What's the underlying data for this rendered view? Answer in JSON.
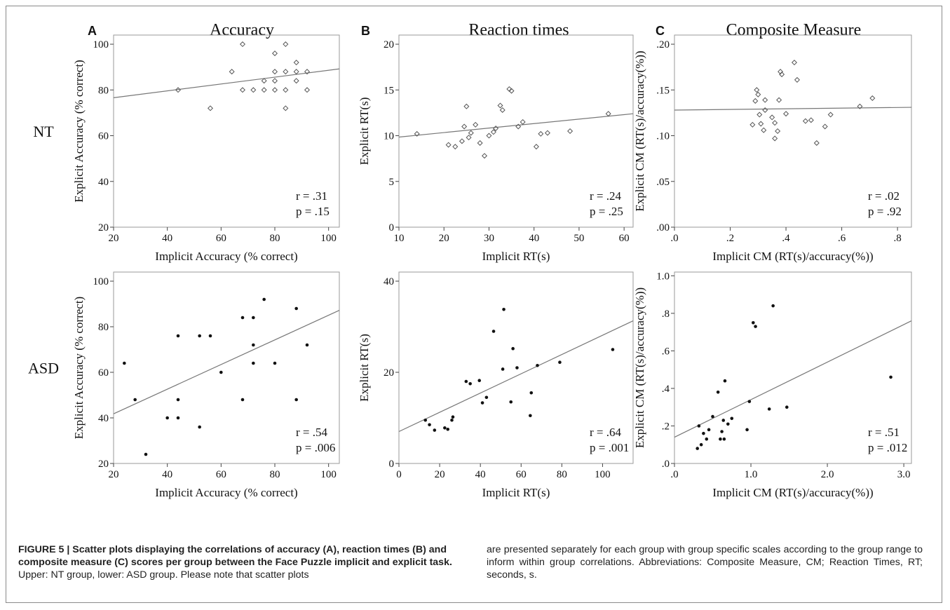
{
  "caption": {
    "title": "FIGURE 5 | Scatter plots displaying the correlations of accuracy (A), reaction times (B) and composite measure (C) scores per group between the Face Puzzle implicit and explicit task.",
    "body_left": "Upper: NT group, lower: ASD group. Please note that scatter plots",
    "body_right": "are presented separately for each group with group specific scales according to the group range to inform within group correlations. Abbreviations: Composite Measure, CM; Reaction Times, RT; seconds, s."
  },
  "columns": [
    {
      "letter": "A",
      "title": "Accuracy"
    },
    {
      "letter": "B",
      "title": "Reaction times"
    },
    {
      "letter": "C",
      "title": "Composite Measure"
    }
  ],
  "rows": [
    "NT",
    "ASD"
  ],
  "chart_data": [
    {
      "type": "scatter",
      "group": "NT",
      "panel": "A",
      "xlabel": "Implicit Accuracy (% correct)",
      "ylabel": "Explicit Accuracy (% correct)",
      "xlim": [
        20,
        104
      ],
      "ylim": [
        20,
        104
      ],
      "xticks": [
        20,
        40,
        60,
        80,
        100
      ],
      "xticklabels": [
        "20",
        "40",
        "60",
        "80",
        "100"
      ],
      "yticks": [
        20,
        40,
        60,
        80,
        100
      ],
      "yticklabels": [
        "20",
        "40",
        "60",
        "80",
        "100"
      ],
      "marker": "diamond-open",
      "points": [
        [
          44,
          80
        ],
        [
          56,
          72
        ],
        [
          64,
          88
        ],
        [
          68,
          100
        ],
        [
          68,
          80
        ],
        [
          72,
          80
        ],
        [
          76,
          84
        ],
        [
          76,
          80
        ],
        [
          80,
          96
        ],
        [
          80,
          88
        ],
        [
          80,
          84
        ],
        [
          80,
          80
        ],
        [
          84,
          100
        ],
        [
          84,
          88
        ],
        [
          84,
          80
        ],
        [
          84,
          72
        ],
        [
          88,
          92
        ],
        [
          88,
          88
        ],
        [
          88,
          84
        ],
        [
          92,
          88
        ],
        [
          92,
          80
        ]
      ],
      "fit": [
        [
          20,
          76.6
        ],
        [
          104,
          89.2
        ]
      ],
      "stats": {
        "r": "r  = .31",
        "p": "p = .15"
      }
    },
    {
      "type": "scatter",
      "group": "NT",
      "panel": "B",
      "xlabel": "Implicit RT(s)",
      "ylabel": "Explicit RT(s)",
      "xlim": [
        10,
        62
      ],
      "ylim": [
        0,
        21
      ],
      "xticks": [
        10,
        20,
        30,
        40,
        50,
        60
      ],
      "xticklabels": [
        "10",
        "20",
        "30",
        "40",
        "50",
        "60"
      ],
      "yticks": [
        0,
        5,
        10,
        15,
        20
      ],
      "yticklabels": [
        "0",
        "5",
        "10",
        "15",
        "20"
      ],
      "marker": "diamond-open",
      "points": [
        [
          14,
          10.2
        ],
        [
          21,
          9.0
        ],
        [
          22.5,
          8.8
        ],
        [
          24,
          9.4
        ],
        [
          24.5,
          11.0
        ],
        [
          25,
          13.2
        ],
        [
          25.5,
          9.8
        ],
        [
          26,
          10.3
        ],
        [
          27,
          11.2
        ],
        [
          28,
          9.2
        ],
        [
          29,
          7.8
        ],
        [
          30,
          10.0
        ],
        [
          31,
          10.4
        ],
        [
          31.5,
          10.8
        ],
        [
          32.5,
          13.3
        ],
        [
          33,
          12.8
        ],
        [
          34.5,
          15.1
        ],
        [
          35,
          14.9
        ],
        [
          36.5,
          11.0
        ],
        [
          37.5,
          11.5
        ],
        [
          40.5,
          8.8
        ],
        [
          41.5,
          10.2
        ],
        [
          43,
          10.3
        ],
        [
          48,
          10.5
        ],
        [
          56.5,
          12.4
        ]
      ],
      "fit": [
        [
          10,
          9.85
        ],
        [
          62,
          12.4
        ]
      ],
      "stats": {
        "r": "r  = .24",
        "p": "p = .25"
      }
    },
    {
      "type": "scatter",
      "group": "NT",
      "panel": "C",
      "xlabel": "Implicit CM (RT(s)/accuracy(%))",
      "ylabel": "Explicit CM (RT(s)/accuracy(%))",
      "xlim": [
        0,
        0.85
      ],
      "ylim": [
        0,
        0.21
      ],
      "xticks": [
        0,
        0.2,
        0.4,
        0.6,
        0.8
      ],
      "xticklabels": [
        ".0",
        ".2",
        ".4",
        ".6",
        ".8"
      ],
      "yticks": [
        0,
        0.05,
        0.1,
        0.15,
        0.2
      ],
      "yticklabels": [
        ".00",
        ".05",
        ".10",
        ".15",
        ".20"
      ],
      "marker": "diamond-open",
      "points": [
        [
          0.28,
          0.112
        ],
        [
          0.29,
          0.138
        ],
        [
          0.295,
          0.15
        ],
        [
          0.3,
          0.145
        ],
        [
          0.305,
          0.123
        ],
        [
          0.31,
          0.113
        ],
        [
          0.32,
          0.106
        ],
        [
          0.325,
          0.139
        ],
        [
          0.325,
          0.128
        ],
        [
          0.35,
          0.12
        ],
        [
          0.36,
          0.114
        ],
        [
          0.36,
          0.097
        ],
        [
          0.37,
          0.105
        ],
        [
          0.375,
          0.139
        ],
        [
          0.38,
          0.17
        ],
        [
          0.385,
          0.167
        ],
        [
          0.4,
          0.124
        ],
        [
          0.43,
          0.18
        ],
        [
          0.44,
          0.161
        ],
        [
          0.47,
          0.116
        ],
        [
          0.49,
          0.117
        ],
        [
          0.51,
          0.092
        ],
        [
          0.54,
          0.11
        ],
        [
          0.56,
          0.123
        ],
        [
          0.665,
          0.132
        ],
        [
          0.71,
          0.141
        ]
      ],
      "fit": [
        [
          0,
          0.128
        ],
        [
          0.85,
          0.131
        ]
      ],
      "stats": {
        "r": "r  = .02",
        "p": "p = .92"
      }
    },
    {
      "type": "scatter",
      "group": "ASD",
      "panel": "A",
      "xlabel": "Implicit Accuracy (% correct)",
      "ylabel": "Explicit Accuracy (% correct)",
      "xlim": [
        20,
        104
      ],
      "ylim": [
        20,
        104
      ],
      "xticks": [
        20,
        40,
        60,
        80,
        100
      ],
      "xticklabels": [
        "20",
        "40",
        "60",
        "80",
        "100"
      ],
      "yticks": [
        20,
        40,
        60,
        80,
        100
      ],
      "yticklabels": [
        "20",
        "40",
        "60",
        "80",
        "100"
      ],
      "marker": "dot-filled",
      "points": [
        [
          24,
          64
        ],
        [
          28,
          48
        ],
        [
          32,
          24
        ],
        [
          40,
          40
        ],
        [
          44,
          76
        ],
        [
          44,
          48
        ],
        [
          44,
          40
        ],
        [
          52,
          76
        ],
        [
          52,
          36
        ],
        [
          56,
          76
        ],
        [
          60,
          60
        ],
        [
          68,
          84
        ],
        [
          68,
          48
        ],
        [
          72,
          84
        ],
        [
          72,
          72
        ],
        [
          72,
          64
        ],
        [
          76,
          92
        ],
        [
          80,
          64
        ],
        [
          88,
          88
        ],
        [
          88,
          48
        ],
        [
          92,
          72
        ]
      ],
      "fit": [
        [
          20,
          41.8
        ],
        [
          104,
          87.2
        ]
      ],
      "stats": {
        "r": "r  = .54",
        "p": "p = .006"
      }
    },
    {
      "type": "scatter",
      "group": "ASD",
      "panel": "B",
      "xlabel": "Implicit RT(s)",
      "ylabel": "Explicit RT(s)",
      "xlim": [
        0,
        115
      ],
      "ylim": [
        0,
        42
      ],
      "xticks": [
        0,
        20,
        40,
        60,
        80,
        100
      ],
      "xticklabels": [
        "0",
        "20",
        "40",
        "60",
        "80",
        "100"
      ],
      "yticks": [
        0,
        20,
        40
      ],
      "yticklabels": [
        "0",
        "20",
        "40"
      ],
      "marker": "dot-filled",
      "points": [
        [
          13,
          9.5
        ],
        [
          15,
          8.5
        ],
        [
          17.5,
          7.3
        ],
        [
          22.5,
          7.8
        ],
        [
          24,
          7.5
        ],
        [
          26,
          9.5
        ],
        [
          26.5,
          10.2
        ],
        [
          33,
          18.0
        ],
        [
          35,
          17.5
        ],
        [
          39.5,
          18.2
        ],
        [
          41,
          13.3
        ],
        [
          43,
          14.5
        ],
        [
          46.5,
          29.0
        ],
        [
          51,
          20.7
        ],
        [
          51.5,
          33.8
        ],
        [
          55,
          13.5
        ],
        [
          56,
          25.2
        ],
        [
          58,
          21.0
        ],
        [
          64.5,
          10.5
        ],
        [
          65,
          15.5
        ],
        [
          68,
          21.5
        ],
        [
          79,
          22.2
        ],
        [
          105,
          25.0
        ]
      ],
      "fit": [
        [
          0,
          7.0
        ],
        [
          115,
          31.3
        ]
      ],
      "stats": {
        "r": "r  = .64",
        "p": "p = .001"
      }
    },
    {
      "type": "scatter",
      "group": "ASD",
      "panel": "C",
      "xlabel": "Implicit CM (RT(s)/accuracy(%))",
      "ylabel": "Explicit CM (RT(s)/accuracy(%))",
      "xlim": [
        0,
        3.1
      ],
      "ylim": [
        0,
        1.02
      ],
      "xticks": [
        0,
        1,
        2,
        3
      ],
      "xticklabels": [
        ".0",
        "1.0",
        "2.0",
        "3.0"
      ],
      "yticks": [
        0,
        0.2,
        0.4,
        0.6,
        0.8,
        1.0
      ],
      "yticklabels": [
        ".0",
        ".2",
        ".4",
        ".6",
        ".8",
        "1.0"
      ],
      "marker": "dot-filled",
      "points": [
        [
          0.3,
          0.08
        ],
        [
          0.32,
          0.2
        ],
        [
          0.35,
          0.1
        ],
        [
          0.38,
          0.16
        ],
        [
          0.42,
          0.13
        ],
        [
          0.45,
          0.18
        ],
        [
          0.5,
          0.25
        ],
        [
          0.57,
          0.38
        ],
        [
          0.6,
          0.13
        ],
        [
          0.62,
          0.17
        ],
        [
          0.64,
          0.23
        ],
        [
          0.65,
          0.13
        ],
        [
          0.66,
          0.44
        ],
        [
          0.7,
          0.21
        ],
        [
          0.75,
          0.24
        ],
        [
          0.95,
          0.18
        ],
        [
          0.98,
          0.33
        ],
        [
          1.03,
          0.75
        ],
        [
          1.06,
          0.73
        ],
        [
          1.24,
          0.29
        ],
        [
          1.29,
          0.84
        ],
        [
          1.47,
          0.3
        ],
        [
          2.83,
          0.46
        ]
      ],
      "fit": [
        [
          0,
          0.14
        ],
        [
          3.1,
          0.76
        ]
      ],
      "stats": {
        "r": "r  = .51",
        "p": "p = .012"
      }
    }
  ]
}
